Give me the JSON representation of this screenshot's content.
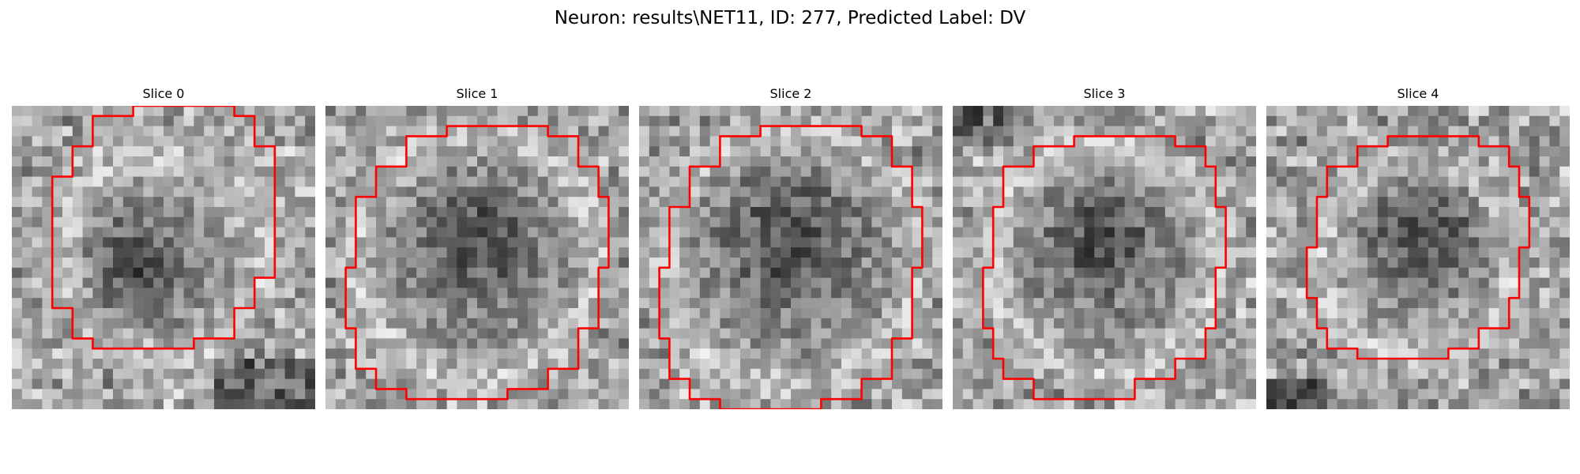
{
  "figure": {
    "title": "Neuron: results\\NET11, ID: 277, Predicted Label: DV",
    "contour_color": "#ff0000",
    "colormap": "grayscale",
    "slices": [
      {
        "title": "Slice 0"
      },
      {
        "title": "Slice 1"
      },
      {
        "title": "Slice 2"
      },
      {
        "title": "Slice 3"
      },
      {
        "title": "Slice 4"
      }
    ]
  }
}
